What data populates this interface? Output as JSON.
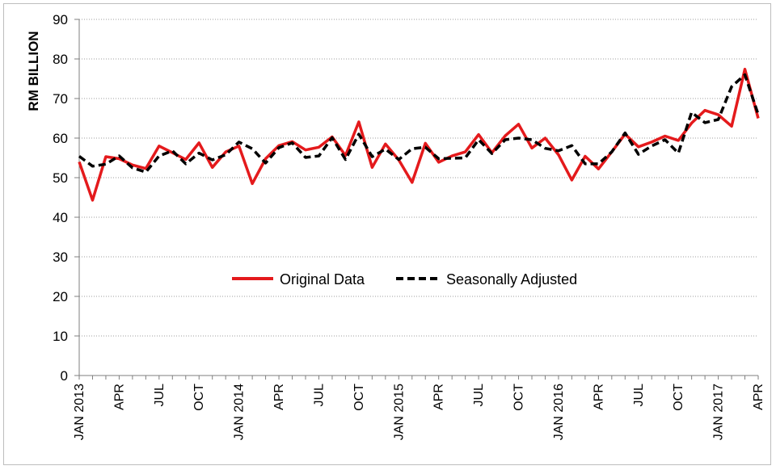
{
  "chart_data": {
    "type": "line",
    "title": "",
    "xlabel": "",
    "ylabel": "RM BILLION",
    "ylim": [
      0,
      90
    ],
    "yticks": [
      0,
      10,
      20,
      30,
      40,
      50,
      60,
      70,
      80,
      90
    ],
    "grid": "horizontal dotted",
    "legend_position": "center",
    "x": [
      "2013-01",
      "2013-02",
      "2013-03",
      "2013-04",
      "2013-05",
      "2013-06",
      "2013-07",
      "2013-08",
      "2013-09",
      "2013-10",
      "2013-11",
      "2013-12",
      "2014-01",
      "2014-02",
      "2014-03",
      "2014-04",
      "2014-05",
      "2014-06",
      "2014-07",
      "2014-08",
      "2014-09",
      "2014-10",
      "2014-11",
      "2014-12",
      "2015-01",
      "2015-02",
      "2015-03",
      "2015-04",
      "2015-05",
      "2015-06",
      "2015-07",
      "2015-08",
      "2015-09",
      "2015-10",
      "2015-11",
      "2015-12",
      "2016-01",
      "2016-02",
      "2016-03",
      "2016-04",
      "2016-05",
      "2016-06",
      "2016-07",
      "2016-08",
      "2016-09",
      "2016-10",
      "2016-11",
      "2016-12",
      "2017-01",
      "2017-02",
      "2017-03",
      "2017-04"
    ],
    "x_tick_labels": [
      {
        "index": 0,
        "label": "JAN 2013"
      },
      {
        "index": 3,
        "label": "APR"
      },
      {
        "index": 6,
        "label": "JUL"
      },
      {
        "index": 9,
        "label": "OCT"
      },
      {
        "index": 12,
        "label": "JAN 2014"
      },
      {
        "index": 15,
        "label": "APR"
      },
      {
        "index": 18,
        "label": "JUL"
      },
      {
        "index": 21,
        "label": "OCT"
      },
      {
        "index": 24,
        "label": "JAN 2015"
      },
      {
        "index": 27,
        "label": "APR"
      },
      {
        "index": 30,
        "label": "JUL"
      },
      {
        "index": 33,
        "label": "OCT"
      },
      {
        "index": 36,
        "label": "JAN 2016"
      },
      {
        "index": 39,
        "label": "APR"
      },
      {
        "index": 42,
        "label": "JUL"
      },
      {
        "index": 45,
        "label": "OCT"
      },
      {
        "index": 48,
        "label": "JAN 2017"
      },
      {
        "index": 51,
        "label": "APR"
      }
    ],
    "series": [
      {
        "name": "Original Data",
        "color": "#e41a1c",
        "style": "solid",
        "values": [
          54.0,
          44.3,
          55.3,
          54.8,
          53.2,
          52.3,
          58.0,
          56.3,
          54.6,
          58.8,
          52.6,
          56.5,
          58.0,
          48.5,
          54.8,
          58.1,
          59.1,
          57.0,
          57.7,
          60.3,
          55.6,
          64.1,
          52.6,
          58.5,
          54.5,
          48.8,
          58.7,
          53.9,
          55.5,
          56.5,
          60.9,
          56.3,
          60.6,
          63.5,
          57.5,
          60.0,
          55.8,
          49.4,
          55.4,
          52.2,
          56.5,
          61.0,
          57.8,
          59.0,
          60.5,
          59.4,
          63.8,
          67.0,
          65.9,
          63.0,
          77.4,
          65.0
        ]
      },
      {
        "name": "Seasonally Adjusted",
        "color": "#000000",
        "style": "dashed",
        "values": [
          55.4,
          52.9,
          53.4,
          55.5,
          52.5,
          51.4,
          55.5,
          56.8,
          53.5,
          56.2,
          54.5,
          55.8,
          59.0,
          57.3,
          53.7,
          57.6,
          58.8,
          55.1,
          55.5,
          60.1,
          54.6,
          61.0,
          55.3,
          57.2,
          54.6,
          57.3,
          57.7,
          54.8,
          54.9,
          55.0,
          59.6,
          56.1,
          59.6,
          60.0,
          59.6,
          57.4,
          56.8,
          58.1,
          53.5,
          53.5,
          56.5,
          61.3,
          55.9,
          58.0,
          59.6,
          56.2,
          66.5,
          63.9,
          64.7,
          73.0,
          76.0,
          66.0
        ]
      }
    ]
  }
}
